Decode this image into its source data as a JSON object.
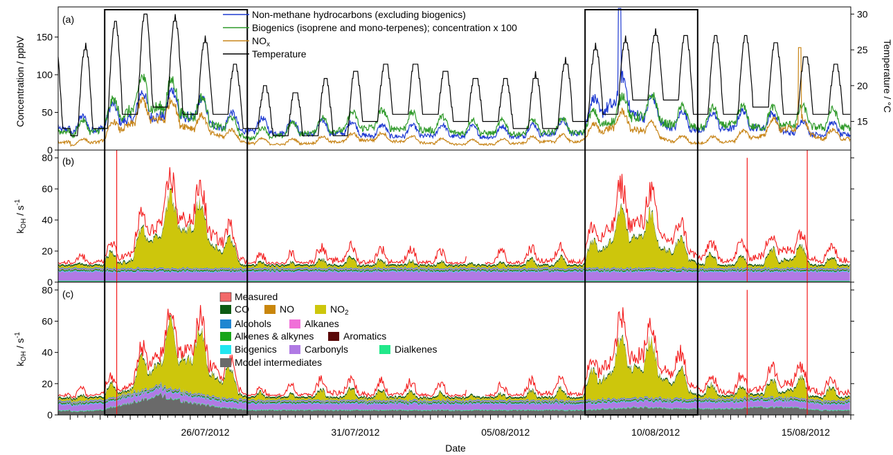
{
  "figure": {
    "xlabel": "Date",
    "x_tick_labels": [
      "26/07/2012",
      "31/07/2012",
      "05/08/2012",
      "10/08/2012",
      "15/08/2012"
    ]
  },
  "chart_data": [
    {
      "type": "line",
      "panel_label": "(a)",
      "ylabel": "Concentration / ppbV",
      "ylabel_right": "Temperature / °C",
      "ylim": [
        0,
        190
      ],
      "ylim_right": [
        11,
        31
      ],
      "y_ticks": [
        0,
        50,
        100,
        150
      ],
      "y_ticks_right": [
        15,
        20,
        25,
        30
      ],
      "x_range_days": [
        "22/07/2012",
        "17/08/2012"
      ],
      "highlight_periods": [
        [
          "23/07/2012",
          "27/07/2012"
        ],
        [
          "08/08/2012",
          "11/08/2012"
        ]
      ],
      "series": [
        {
          "name": "Non-methane hydrocarbons (excluding biogenics)",
          "color": "#1f3bd1",
          "daily_baseline": [
            30,
            38,
            55,
            60,
            58,
            40,
            32,
            30,
            28,
            30,
            25,
            24,
            25,
            24,
            23,
            24,
            28,
            30,
            80,
            60,
            40,
            35,
            38,
            40,
            30,
            27
          ],
          "peak_value": 188
        },
        {
          "name": "Biogenics (isoprene and mono-terpenes); concentration x 100",
          "color": "#2f9a2a",
          "daily_baseline": [
            25,
            35,
            70,
            75,
            60,
            40,
            20,
            25,
            30,
            35,
            40,
            38,
            35,
            30,
            30,
            28,
            32,
            30,
            50,
            60,
            45,
            40,
            45,
            40,
            45,
            40
          ]
        },
        {
          "name": "NOx",
          "color": "#c8861a",
          "daily_baseline": [
            8,
            15,
            45,
            55,
            40,
            25,
            12,
            10,
            12,
            15,
            18,
            15,
            12,
            10,
            10,
            12,
            15,
            15,
            40,
            35,
            15,
            12,
            15,
            25,
            40,
            20
          ],
          "peak_value": 136
        },
        {
          "name": "Temperature",
          "color": "#000000",
          "axis": "right",
          "daily_max": [
            23,
            28,
            30,
            31,
            28,
            25,
            21,
            19,
            20,
            22,
            23,
            24,
            23,
            22,
            21,
            21,
            22,
            25,
            26,
            27,
            28,
            27,
            27,
            27,
            26,
            23
          ],
          "daily_min": [
            13,
            14,
            16,
            17,
            16,
            16,
            14,
            13,
            13,
            13,
            15,
            16,
            16,
            15,
            15,
            14,
            14,
            15,
            16,
            18,
            18,
            16,
            16,
            17,
            16,
            16
          ]
        }
      ]
    },
    {
      "type": "area",
      "panel_label": "(b)",
      "ylabel": "kOH / s-1",
      "ylim": [
        0,
        85
      ],
      "y_ticks": [
        0,
        20,
        40,
        60,
        80
      ],
      "description_stack_order": [
        "Model intermediates",
        "Dialkenes",
        "Carbonyls",
        "Biogenics",
        "Aromatics",
        "Alkenes & alkynes",
        "Alkanes",
        "Alcohols",
        "NO2",
        "NO",
        "CO"
      ],
      "daily_total": [
        9,
        14,
        20,
        45,
        50,
        30,
        12,
        10,
        12,
        14,
        13,
        12,
        12,
        10,
        10,
        12,
        14,
        13,
        38,
        42,
        28,
        16,
        14,
        16,
        22,
        14
      ],
      "daily_measured": [
        12,
        18,
        25,
        55,
        58,
        38,
        15,
        14,
        18,
        20,
        18,
        18,
        17,
        15,
        16,
        17,
        20,
        18,
        50,
        55,
        38,
        22,
        20,
        24,
        30,
        20
      ],
      "measured_spikes": [
        {
          "day": "23/07/2012",
          "value": 85
        },
        {
          "day": "13/08/2012",
          "value": 80
        },
        {
          "day": "15/08/2012",
          "value": 85
        }
      ]
    },
    {
      "type": "area",
      "panel_label": "(c)",
      "ylabel": "kOH / s-1",
      "ylim": [
        0,
        85
      ],
      "y_ticks": [
        0,
        20,
        40,
        60,
        80
      ],
      "legend": [
        {
          "name": "Measured",
          "color": "#f26a6a"
        },
        {
          "name": "CO",
          "color": "#0b5a12"
        },
        {
          "name": "NO",
          "color": "#c9860b"
        },
        {
          "name": "NO2",
          "color": "#cdc60c"
        },
        {
          "name": "Alcohols",
          "color": "#1f86d1"
        },
        {
          "name": "Alkanes",
          "color": "#f070d8"
        },
        {
          "name": "Alkenes & alkynes",
          "color": "#18a51a"
        },
        {
          "name": "Aromatics",
          "color": "#5a0808"
        },
        {
          "name": "Biogenics",
          "color": "#22e6f0"
        },
        {
          "name": "Carbonyls",
          "color": "#b07ae4"
        },
        {
          "name": "Dialkenes",
          "color": "#22e88a"
        },
        {
          "name": "Model intermediates",
          "color": "#6a6a6a"
        }
      ],
      "model_intermediates_daily": [
        2,
        3,
        8,
        13,
        8,
        5,
        3,
        3,
        3,
        3,
        3,
        3,
        3,
        3,
        3,
        3,
        3,
        3,
        4,
        5,
        4,
        4,
        4,
        5,
        5,
        3
      ],
      "daily_total": [
        9,
        14,
        22,
        48,
        52,
        32,
        13,
        11,
        13,
        15,
        14,
        13,
        13,
        11,
        11,
        13,
        15,
        14,
        40,
        44,
        30,
        17,
        15,
        17,
        23,
        15
      ],
      "daily_measured": [
        12,
        18,
        25,
        55,
        58,
        38,
        15,
        14,
        18,
        20,
        18,
        18,
        17,
        15,
        16,
        17,
        20,
        18,
        50,
        55,
        38,
        22,
        20,
        24,
        30,
        20
      ]
    }
  ],
  "legend_a_labels": {
    "nmhc": "Non-methane hydrocarbons (excluding biogenics)",
    "bio": "Biogenics (isoprene and mono-terpenes); concentration x 100",
    "nox_base": "NO",
    "nox_sub": "x",
    "temp": "Temperature"
  },
  "legend_c_labels": {
    "measured": "Measured",
    "co": "CO",
    "no": "NO",
    "no2_base": "NO",
    "no2_sub": "2",
    "alcohols": "Alcohols",
    "alkanes": "Alkanes",
    "alkenes": "Alkenes & alkynes",
    "aromatics": "Aromatics",
    "biogenics": "Biogenics",
    "carbonyls": "Carbonyls",
    "dialkenes": "Dialkenes",
    "model": "Model intermediates"
  },
  "ylabels": {
    "a_left": "Concentration / ppbV",
    "a_right": "Temperature / °C",
    "k_base": "k",
    "k_sub": "OH",
    "k_unit": " / s",
    "k_sup": "-1"
  }
}
